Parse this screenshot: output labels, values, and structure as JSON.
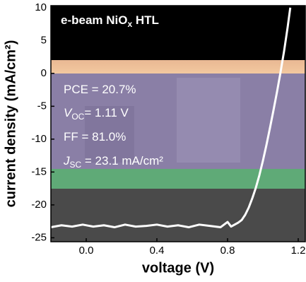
{
  "chart_data": {
    "type": "line",
    "xlabel": "voltage (V)",
    "ylabel": "current density (mA/cm²)",
    "annotations": [
      [
        "e-beam NiO",
        "x",
        " HTL"
      ],
      [
        "PCE = 20.7%"
      ],
      [
        "V",
        "OC",
        "= 1.11 V"
      ],
      [
        "FF = 81.0%"
      ],
      [
        "J",
        "SC",
        " = 23.1 mA/cm²"
      ]
    ],
    "xlim": [
      -0.2,
      1.24
    ],
    "ylim": [
      -25.6,
      10.3
    ],
    "xticks": [
      {
        "value": 0,
        "label": "0.0"
      },
      0.4,
      0.8,
      1.2
    ],
    "yticks": [
      10,
      5,
      0,
      -5,
      -10,
      -15,
      -20,
      -25
    ],
    "series": [
      {
        "color": "#ffffff",
        "x": [
          -0.2,
          -0.14,
          -0.08,
          -0.02,
          0.04,
          0.1,
          0.16,
          0.22,
          0.28,
          0.34,
          0.4,
          0.46,
          0.52,
          0.58,
          0.64,
          0.7,
          0.76,
          0.8,
          0.82,
          0.84,
          0.86,
          0.88,
          0.9,
          0.92,
          0.94,
          0.96,
          0.98,
          1.0,
          1.02,
          1.04,
          1.06,
          1.08,
          1.1,
          1.12,
          1.14,
          1.155
        ],
        "values": [
          -23.4,
          -23.1,
          -23.3,
          -23.0,
          -23.3,
          -23.1,
          -23.4,
          -23.0,
          -23.3,
          -23.2,
          -23.0,
          -23.3,
          -23.1,
          -23.4,
          -23.0,
          -23.2,
          -23.4,
          -22.6,
          -23.3,
          -23.0,
          -22.7,
          -22.3,
          -21.5,
          -20.4,
          -19.0,
          -17.4,
          -15.5,
          -13.3,
          -10.9,
          -8.3,
          -5.6,
          -2.8,
          0.2,
          3.4,
          7.0,
          10.0
        ]
      }
    ]
  }
}
